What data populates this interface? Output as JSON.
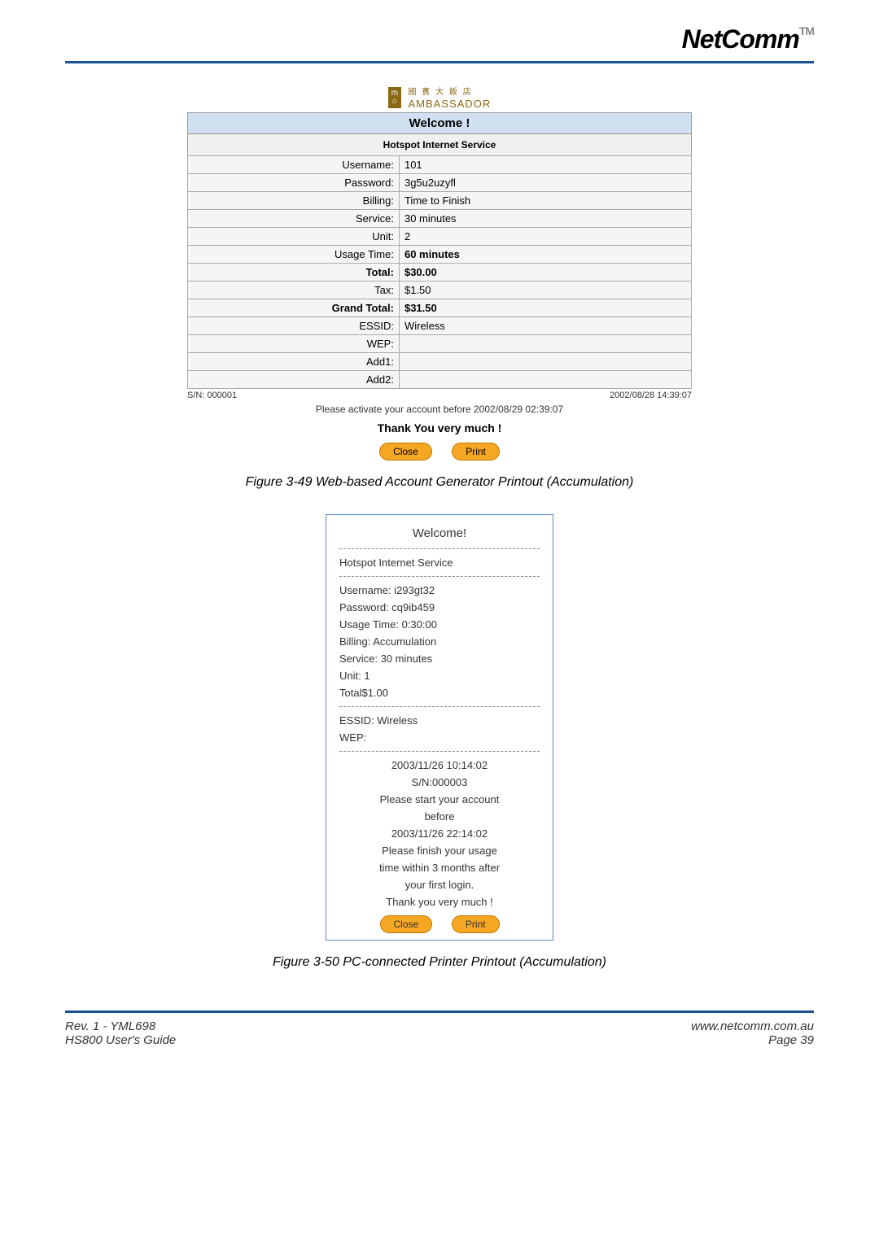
{
  "header": {
    "logo_text": "NetComm",
    "tm": "TM"
  },
  "printout1": {
    "ambassador_cn": "國 賓 大 飯 店",
    "ambassador_en": "AMBASSADOR",
    "welcome": "Welcome !",
    "service_header": "Hotspot Internet Service",
    "rows": {
      "username_label": "Username:",
      "username_value": "101",
      "password_label": "Password:",
      "password_value": "3g5u2uzyfl",
      "billing_label": "Billing:",
      "billing_value": "Time to Finish",
      "service_label": "Service:",
      "service_value": "30 minutes",
      "unit_label": "Unit:",
      "unit_value": "2",
      "usage_label": "Usage Time:",
      "usage_value": "60 minutes",
      "total_label": "Total:",
      "total_value": "$30.00",
      "tax_label": "Tax:",
      "tax_value": "$1.50",
      "grand_label": "Grand Total:",
      "grand_value": "$31.50",
      "essid_label": "ESSID:",
      "essid_value": "Wireless",
      "wep_label": "WEP:",
      "wep_value": "",
      "add1_label": "Add1:",
      "add1_value": "",
      "add2_label": "Add2:",
      "add2_value": ""
    },
    "sn": "S/N: 000001",
    "timestamp": "2002/08/28 14:39:07",
    "activate": "Please activate your account before 2002/08/29 02:39:07",
    "thanks": "Thank You very much !",
    "close_btn": "Close",
    "print_btn": "Print"
  },
  "caption1": "Figure 3-49 Web-based Account Generator Printout (Accumulation)",
  "receipt": {
    "title": "Welcome!",
    "service": "Hotspot Internet Service",
    "username": "Username: i293gt32",
    "password": "Password: cq9ib459",
    "usage": "Usage Time: 0:30:00",
    "billing": "Billing: Accumulation",
    "svc": "Service: 30 minutes",
    "unit": "Unit: 1",
    "total": "Total$1.00",
    "essid": "ESSID: Wireless",
    "wep": "WEP:",
    "ts1": "2003/11/26 10:14:02",
    "sn": "S/N:000003",
    "start1": "Please start your account",
    "start2": "before",
    "ts2": "2003/11/26 22:14:02",
    "finish1": "Please finish your usage",
    "finish2": "time within 3 months after",
    "finish3": "your first login.",
    "thanks": "Thank you very much !",
    "close_btn": "Close",
    "print_btn": "Print"
  },
  "caption2": "Figure 3-50 PC-connected Printer Printout (Accumulation)",
  "footer": {
    "rev": "Rev. 1 - YML698",
    "guide": "HS800 User's Guide",
    "url": "www.netcomm.com.au",
    "page": "Page 39"
  }
}
